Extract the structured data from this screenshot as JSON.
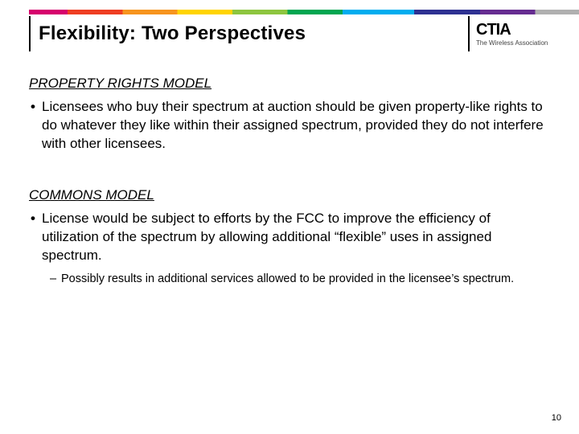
{
  "slide": {
    "title": "Flexibility: Two Perspectives",
    "page_number": "10"
  },
  "logo": {
    "name": "CTIA",
    "tagline": "The Wireless Association"
  },
  "rainbow_colors": [
    "#d6006c",
    "#ef3e23",
    "#f7941e",
    "#ffd400",
    "#8dc63f",
    "#00a651",
    "#00adef",
    "#2e3192",
    "#662d91",
    "#b0b0b0"
  ],
  "sections": [
    {
      "heading": "PROPERTY RIGHTS MODEL",
      "bullet": "Licensees who buy their spectrum at auction should be given property-like rights to do whatever they like within their assigned spectrum, provided they do not interfere with other licensees."
    },
    {
      "heading": "COMMONS MODEL",
      "bullet": "License would be subject to efforts by the FCC to improve the efficiency of utilization of the spectrum by allowing additional “flexible” uses in assigned spectrum.",
      "sub": "Possibly results in additional services allowed to be provided in the licensee’s spectrum."
    }
  ]
}
